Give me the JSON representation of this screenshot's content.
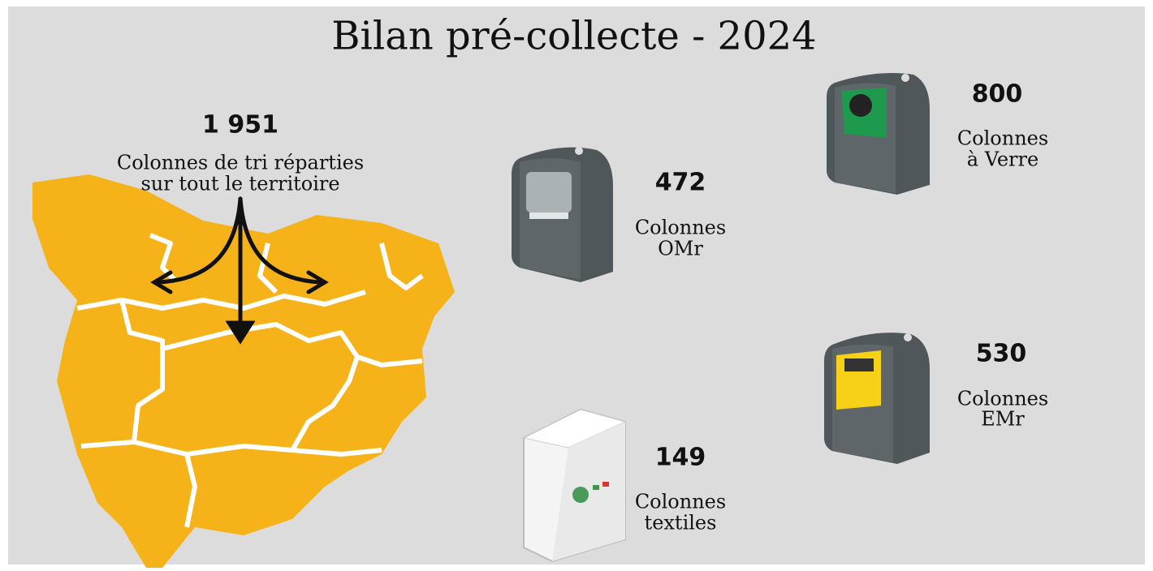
{
  "title": "Bilan pré-collecte - 2024",
  "total": {
    "value": "1 951",
    "label": [
      "Colonnes de tri réparties",
      "sur tout le territoire"
    ]
  },
  "items": [
    {
      "value": "472",
      "label": [
        "Colonnes",
        "OMr"
      ]
    },
    {
      "value": "800",
      "label": [
        "Colonnes",
        "à Verre"
      ]
    },
    {
      "value": "530",
      "label": [
        "Colonnes",
        "EMr"
      ]
    },
    {
      "value": "149",
      "label": [
        "Colonnes",
        "textiles"
      ]
    }
  ]
}
